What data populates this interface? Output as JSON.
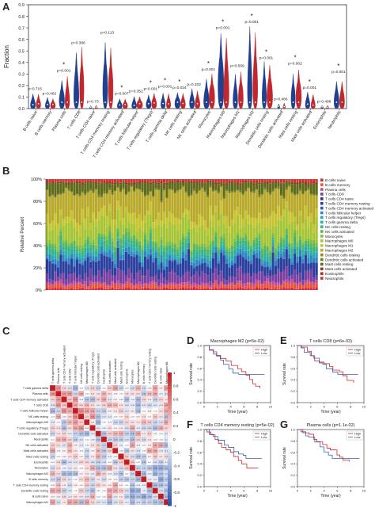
{
  "figure": {
    "panel_letters": [
      "A",
      "B",
      "C",
      "D",
      "E",
      "F",
      "G"
    ]
  },
  "panel_a": {
    "ylabel": "Fraction",
    "yticks": [
      "0.0",
      "0.1",
      "0.2",
      "0.3",
      "0.4",
      "0.5",
      "0.6",
      "0.7",
      "0.8",
      "0.9"
    ],
    "cells": [
      {
        "name": "B cells naive",
        "p": "p=0.715",
        "star": false
      },
      {
        "name": "B cells memory",
        "p": "p=0.402",
        "star": false
      },
      {
        "name": "Plasma cells",
        "p": "p=0.001",
        "star": true
      },
      {
        "name": "T cells CD8",
        "p": "p=0.386",
        "star": false
      },
      {
        "name": "T cells CD4 naive",
        "p": "p=0.73",
        "star": false
      },
      {
        "name": "T cells CD4 memory resting",
        "p": "p=0.113",
        "star": false
      },
      {
        "name": "T cells CD4 memory activated",
        "p": "p=0.007",
        "star": true
      },
      {
        "name": "T cells follicular helper",
        "p": "p=0.352",
        "star": false
      },
      {
        "name": "T cells regulatory (Tregs)",
        "p": "p=0.001",
        "star": true
      },
      {
        "name": "T cells gamma delta",
        "p": "p=0.001",
        "star": true
      },
      {
        "name": "NK cells resting",
        "p": "p=0.024",
        "star": true
      },
      {
        "name": "NK cells activated",
        "p": "p=0.102",
        "star": false
      },
      {
        "name": "Monocytes",
        "p": "p=0.001",
        "star": true
      },
      {
        "name": "Macrophages M0",
        "p": "p=0.001",
        "star": true
      },
      {
        "name": "Macrophages M1",
        "p": "p=0.569",
        "star": false
      },
      {
        "name": "Macrophages M2",
        "p": "p=0.001",
        "star": true
      },
      {
        "name": "Dendritic cells resting",
        "p": "p=0.001",
        "star": true
      },
      {
        "name": "Dendritic cells activated",
        "p": "p=0.486",
        "star": false
      },
      {
        "name": "Mast cells resting",
        "p": "p=0.002",
        "star": true
      },
      {
        "name": "Mast cells activated",
        "p": "p=0.001",
        "star": true
      },
      {
        "name": "Eosinophils",
        "p": "p=0.498",
        "star": false
      },
      {
        "name": "Neutrophils",
        "p": "p=0.001",
        "star": true
      }
    ],
    "star_symbol": "*",
    "colors": {
      "group1": "#1f3f8f",
      "group2": "#c0282d"
    }
  },
  "panel_b": {
    "ylabel": "Relative Percent",
    "yticks": [
      "0%",
      "20%",
      "40%",
      "60%",
      "80%",
      "100%"
    ],
    "legend": [
      "B cells naive",
      "B cells memory",
      "Plasma cells",
      "T cells CD8",
      "T cells CD4 naive",
      "T cells CD4 memory resting",
      "T cells CD4 memory activated",
      "T cells follicular helper",
      "T cells regulatory (Tregs)",
      "T cells gamma delta",
      "NK cells resting",
      "NK cells activated",
      "Monocytes",
      "Macrophages M0",
      "Macrophages M1",
      "Macrophages M2",
      "Dendritic cells resting",
      "Dendritic cells activated",
      "Mast cells resting",
      "Mast cells activated",
      "Eosinophils",
      "Neutrophils"
    ],
    "colors": [
      "#d7263d",
      "#e8553b",
      "#c04a9b",
      "#7b3fa0",
      "#3a2f8f",
      "#2b3f9e",
      "#2a5fb0",
      "#2d86c2",
      "#2ca5b8",
      "#2ab39a",
      "#3bb37a",
      "#5bb859",
      "#7fbf3f",
      "#a6c535",
      "#c6c431",
      "#b9a92b",
      "#8c8c2a",
      "#6f7a22",
      "#5e6b1b",
      "#8a3a22",
      "#b02e2b",
      "#d1322f"
    ]
  },
  "panel_c": {
    "row_labels": [
      "T cells gamma delta",
      "Plasma cells",
      "T cells CD4 memory activated",
      "T cells CD8",
      "T cells follicular helper",
      "NK cells resting",
      "Macrophages M0",
      "T cells regulatory (Tregs)",
      "Dendritic cells activated",
      "Neutrophils",
      "NK cells activated",
      "Mast cells activated",
      "Mast cells resting",
      "Eosinophils",
      "Monocytes",
      "Macrophages M2",
      "B cells memory",
      "T cells CD4 memory resting",
      "Dendritic cells resting",
      "B cells naive",
      "Macrophages M1"
    ],
    "col_labels": [
      "T cells gamma delta",
      "Plasma cells",
      "T cells CD4 memory activated",
      "T cells CD8",
      "T cells follicular helper",
      "NK cells resting",
      "Macrophages M0",
      "T cells regulatory (Tregs)",
      "Dendritic cells activated",
      "Neutrophils",
      "NK cells activated",
      "Mast cells activated",
      "Mast cells resting",
      "Eosinophils",
      "Monocytes",
      "Macrophages M2",
      "B cells memory",
      "T cells CD4 memory resting",
      "Dendritic cells resting",
      "B cells naive",
      "Macrophages M1"
    ],
    "colorbar_ticks": [
      "1",
      "0.8",
      "0.6",
      "0.4",
      "0.2",
      "0",
      "-0.2",
      "-0.4",
      "-0.6",
      "-0.8",
      "-1"
    ]
  },
  "km_panels": [
    {
      "key": "D",
      "title": "Macrophages M2 (p=5e-02)",
      "ylabel": "Survival rate",
      "xlabel": "Time (year)",
      "legend": [
        "High",
        "Low"
      ]
    },
    {
      "key": "E",
      "title": "T cells CD8 (p=6e-03)",
      "ylabel": "Survival rate",
      "xlabel": "Time (year)",
      "legend": [
        "High",
        "Low"
      ]
    },
    {
      "key": "F",
      "title": "T cells CD4 memory resting (p=5e-02)",
      "ylabel": "Survival rate",
      "xlabel": "Time (year)",
      "legend": [
        "High",
        "Low"
      ]
    },
    {
      "key": "G",
      "title": "Plasma cells (p=1.1e-02)",
      "ylabel": "Survival rate",
      "xlabel": "Time (year)",
      "legend": [
        "High",
        "Low"
      ]
    }
  ],
  "km_colors": {
    "high": "#d62728",
    "low": "#3a5fb0"
  },
  "km_yticks": [
    "0.0",
    "0.2",
    "0.4",
    "0.6",
    "0.8",
    "1.0"
  ],
  "km_xticks": [
    "0",
    "2",
    "4",
    "6",
    "8",
    "10"
  ]
}
